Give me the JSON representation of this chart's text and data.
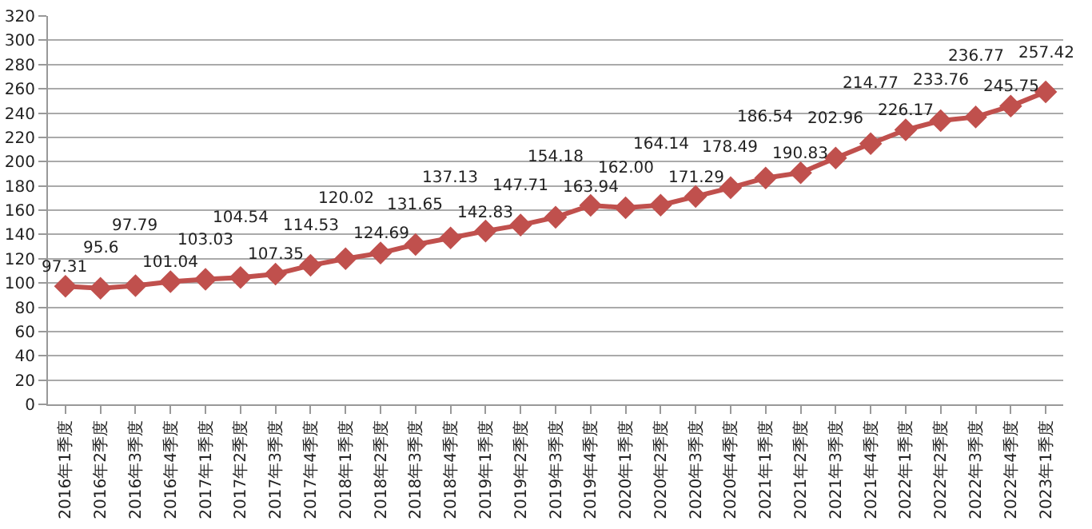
{
  "chart_data": {
    "type": "line",
    "categories": [
      "2016年1季度",
      "2016年2季度",
      "2016年3季度",
      "2016年4季度",
      "2017年1季度",
      "2017年2季度",
      "2017年3季度",
      "2017年4季度",
      "2018年1季度",
      "2018年2季度",
      "2018年3季度",
      "2018年4季度",
      "2019年1季度",
      "2019年2季度",
      "2019年3季度",
      "2019年4季度",
      "2020年1季度",
      "2020年2季度",
      "2020年3季度",
      "2020年4季度",
      "2021年1季度",
      "2021年2季度",
      "2021年3季度",
      "2021年4季度",
      "2022年1季度",
      "2022年2季度",
      "2022年3季度",
      "2022年4季度",
      "2023年1季度"
    ],
    "series": [
      {
        "color": "#c0504d",
        "values": [
          97.31,
          95.6,
          97.79,
          101.04,
          103.03,
          104.54,
          107.35,
          114.53,
          120.02,
          124.69,
          131.65,
          137.13,
          142.83,
          147.71,
          154.18,
          163.94,
          162.0,
          164.14,
          171.29,
          178.49,
          186.54,
          190.83,
          202.96,
          214.77,
          226.17,
          233.76,
          236.77,
          245.75,
          257.42
        ],
        "value_labels": [
          "97.31",
          "95.6",
          "97.79",
          "101.04",
          "103.03",
          "104.54",
          "107.35",
          "114.53",
          "120.02",
          "124.69",
          "131.65",
          "137.13",
          "142.83",
          "147.71",
          "154.18",
          "163.94",
          "162.00",
          "164.14",
          "171.29",
          "178.49",
          "186.54",
          "190.83",
          "202.96",
          "214.77",
          "226.17",
          "233.76",
          "236.77",
          "245.75",
          "257.42"
        ]
      }
    ],
    "ylim": [
      0,
      320
    ],
    "yticks": [
      0,
      20,
      40,
      60,
      80,
      100,
      120,
      140,
      160,
      180,
      200,
      220,
      240,
      260,
      280,
      300,
      320
    ],
    "grid": "y",
    "legend": false,
    "marker": "diamond",
    "line_style": "solid"
  }
}
